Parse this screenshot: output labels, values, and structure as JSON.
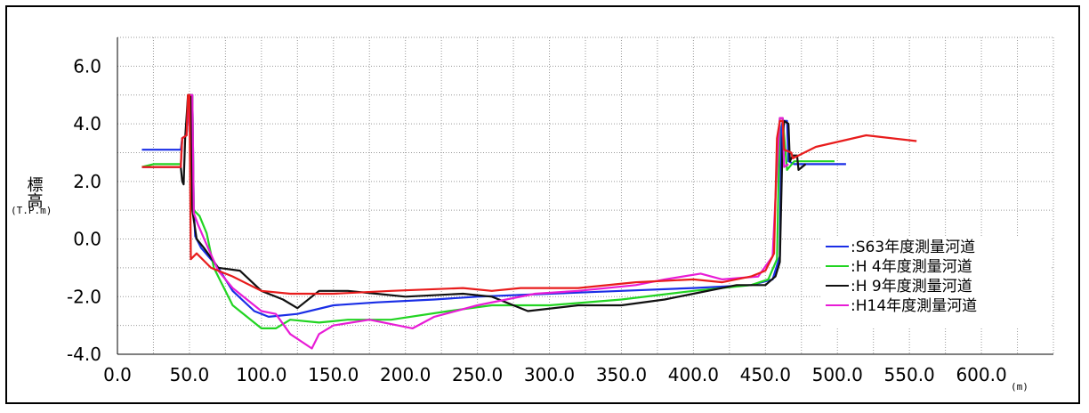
{
  "chart_data": {
    "type": "line",
    "title": "",
    "ylabel": "標高",
    "ylabel_unit": "(T.P.m)",
    "xlabel": "",
    "xunit": "(m)",
    "xlim": [
      0,
      650
    ],
    "ylim": [
      -4,
      7
    ],
    "grid": true,
    "legend_position": "bottom-right",
    "x_ticks": [
      {
        "value": 0,
        "label": "0.0"
      },
      {
        "value": 50,
        "label": "50.0"
      },
      {
        "value": 100,
        "label": "100.0"
      },
      {
        "value": 150,
        "label": "150.0"
      },
      {
        "value": 200,
        "label": "200.0"
      },
      {
        "value": 250,
        "label": "250.0"
      },
      {
        "value": 300,
        "label": "300.0"
      },
      {
        "value": 350,
        "label": "350.0"
      },
      {
        "value": 400,
        "label": "400.0"
      },
      {
        "value": 450,
        "label": "450.0"
      },
      {
        "value": 500,
        "label": "500.0"
      },
      {
        "value": 550,
        "label": "550.0"
      },
      {
        "value": 600,
        "label": "600.0"
      }
    ],
    "y_ticks": [
      {
        "value": 6,
        "label": "6.0"
      },
      {
        "value": 4,
        "label": "4.0"
      },
      {
        "value": 2,
        "label": "2.0"
      },
      {
        "value": 0,
        "label": "0.0"
      },
      {
        "value": -2,
        "label": "-2.0"
      },
      {
        "value": -4,
        "label": "-4.0"
      }
    ],
    "series": [
      {
        "name": ":S63年度測量河道",
        "color": "#1a2ee6",
        "points": [
          [
            17,
            3.1
          ],
          [
            44,
            3.1
          ],
          [
            45,
            3.5
          ],
          [
            48,
            3.6
          ],
          [
            50,
            5.0
          ],
          [
            52,
            5.0
          ],
          [
            53,
            1.0
          ],
          [
            54,
            0.1
          ],
          [
            58,
            -0.3
          ],
          [
            70,
            -1.0
          ],
          [
            80,
            -1.8
          ],
          [
            95,
            -2.5
          ],
          [
            105,
            -2.7
          ],
          [
            125,
            -2.6
          ],
          [
            150,
            -2.3
          ],
          [
            180,
            -2.2
          ],
          [
            220,
            -2.1
          ],
          [
            250,
            -2.0
          ],
          [
            300,
            -1.9
          ],
          [
            350,
            -1.8
          ],
          [
            400,
            -1.7
          ],
          [
            440,
            -1.6
          ],
          [
            455,
            -1.4
          ],
          [
            460,
            -0.6
          ],
          [
            461,
            3.8
          ],
          [
            462,
            4.1
          ],
          [
            465,
            4.1
          ],
          [
            466,
            2.7
          ],
          [
            470,
            2.6
          ],
          [
            506,
            2.6
          ]
        ]
      },
      {
        "name": ":H 4年度測量河道",
        "color": "#22d422",
        "points": [
          [
            17,
            2.5
          ],
          [
            25,
            2.6
          ],
          [
            44,
            2.6
          ],
          [
            45,
            3.5
          ],
          [
            48,
            3.6
          ],
          [
            50,
            5.0
          ],
          [
            52,
            5.0
          ],
          [
            53,
            1.0
          ],
          [
            57,
            0.8
          ],
          [
            62,
            0.2
          ],
          [
            67,
            -1.0
          ],
          [
            72,
            -1.5
          ],
          [
            80,
            -2.3
          ],
          [
            100,
            -3.1
          ],
          [
            110,
            -3.1
          ],
          [
            120,
            -2.8
          ],
          [
            140,
            -2.9
          ],
          [
            160,
            -2.8
          ],
          [
            190,
            -2.8
          ],
          [
            230,
            -2.5
          ],
          [
            260,
            -2.3
          ],
          [
            300,
            -2.3
          ],
          [
            350,
            -2.1
          ],
          [
            400,
            -1.8
          ],
          [
            440,
            -1.6
          ],
          [
            452,
            -1.4
          ],
          [
            458,
            -0.7
          ],
          [
            460,
            4.2
          ],
          [
            462,
            4.2
          ],
          [
            465,
            2.4
          ],
          [
            470,
            2.7
          ],
          [
            490,
            2.7
          ],
          [
            498,
            2.7
          ]
        ]
      },
      {
        "name": ":H 9年度測量河道",
        "color": "#111111",
        "points": [
          [
            17,
            2.5
          ],
          [
            44,
            2.5
          ],
          [
            45,
            2.0
          ],
          [
            46,
            1.9
          ],
          [
            47,
            3.5
          ],
          [
            49,
            5.0
          ],
          [
            51,
            5.0
          ],
          [
            52,
            1.0
          ],
          [
            55,
            0.0
          ],
          [
            60,
            -0.3
          ],
          [
            70,
            -1.0
          ],
          [
            85,
            -1.1
          ],
          [
            100,
            -1.8
          ],
          [
            115,
            -2.1
          ],
          [
            125,
            -2.4
          ],
          [
            140,
            -1.8
          ],
          [
            160,
            -1.8
          ],
          [
            180,
            -1.9
          ],
          [
            200,
            -2.0
          ],
          [
            240,
            -1.9
          ],
          [
            260,
            -2.0
          ],
          [
            285,
            -2.5
          ],
          [
            320,
            -2.3
          ],
          [
            350,
            -2.3
          ],
          [
            380,
            -2.1
          ],
          [
            400,
            -1.9
          ],
          [
            430,
            -1.6
          ],
          [
            450,
            -1.6
          ],
          [
            457,
            -1.3
          ],
          [
            460,
            -0.8
          ],
          [
            462,
            3.5
          ],
          [
            463,
            4.1
          ],
          [
            466,
            4.0
          ],
          [
            467,
            2.7
          ],
          [
            469,
            2.9
          ],
          [
            472,
            2.9
          ],
          [
            473,
            2.4
          ],
          [
            478,
            2.6
          ]
        ]
      },
      {
        "name": ":H14年度測量河道",
        "color": "#e81cd6",
        "points": [
          [
            17,
            2.5
          ],
          [
            44,
            2.5
          ],
          [
            45,
            3.5
          ],
          [
            48,
            3.6
          ],
          [
            50,
            5.0
          ],
          [
            52,
            5.0
          ],
          [
            53,
            0.9
          ],
          [
            56,
            0.5
          ],
          [
            62,
            -0.2
          ],
          [
            70,
            -1.1
          ],
          [
            80,
            -1.7
          ],
          [
            100,
            -2.5
          ],
          [
            110,
            -2.6
          ],
          [
            120,
            -3.3
          ],
          [
            135,
            -3.8
          ],
          [
            140,
            -3.3
          ],
          [
            150,
            -3.0
          ],
          [
            175,
            -2.8
          ],
          [
            205,
            -3.1
          ],
          [
            220,
            -2.7
          ],
          [
            250,
            -2.3
          ],
          [
            290,
            -1.9
          ],
          [
            320,
            -1.8
          ],
          [
            360,
            -1.6
          ],
          [
            380,
            -1.4
          ],
          [
            405,
            -1.2
          ],
          [
            420,
            -1.4
          ],
          [
            445,
            -1.3
          ],
          [
            455,
            -0.6
          ],
          [
            458,
            2.5
          ],
          [
            460,
            4.2
          ],
          [
            462,
            4.2
          ],
          [
            463,
            2.5
          ],
          [
            466,
            2.6
          ]
        ]
      },
      {
        "name": "",
        "color": "#e81c1c",
        "points": [
          [
            17,
            2.5
          ],
          [
            44,
            2.5
          ],
          [
            45,
            3.5
          ],
          [
            48,
            3.6
          ],
          [
            49,
            5.0
          ],
          [
            50,
            5.0
          ],
          [
            51,
            -0.7
          ],
          [
            55,
            -0.5
          ],
          [
            65,
            -1.0
          ],
          [
            80,
            -1.3
          ],
          [
            100,
            -1.8
          ],
          [
            120,
            -1.9
          ],
          [
            150,
            -1.9
          ],
          [
            190,
            -1.8
          ],
          [
            240,
            -1.7
          ],
          [
            260,
            -1.8
          ],
          [
            280,
            -1.7
          ],
          [
            320,
            -1.7
          ],
          [
            360,
            -1.5
          ],
          [
            400,
            -1.4
          ],
          [
            420,
            -1.5
          ],
          [
            440,
            -1.3
          ],
          [
            450,
            -1.1
          ],
          [
            456,
            -0.5
          ],
          [
            458,
            3.5
          ],
          [
            460,
            4.1
          ],
          [
            462,
            4.1
          ],
          [
            463,
            3.1
          ],
          [
            468,
            3.0
          ],
          [
            469,
            2.8
          ],
          [
            485,
            3.2
          ],
          [
            520,
            3.6
          ],
          [
            555,
            3.4
          ]
        ]
      }
    ],
    "legend": [
      {
        "label": ":S63年度測量河道",
        "color": "#1a2ee6"
      },
      {
        "label": ":H 4年度測量河道",
        "color": "#22d422"
      },
      {
        "label": ":H 9年度測量河道",
        "color": "#111111"
      },
      {
        "label": ":H14年度測量河道",
        "color": "#e81cd6"
      }
    ]
  }
}
